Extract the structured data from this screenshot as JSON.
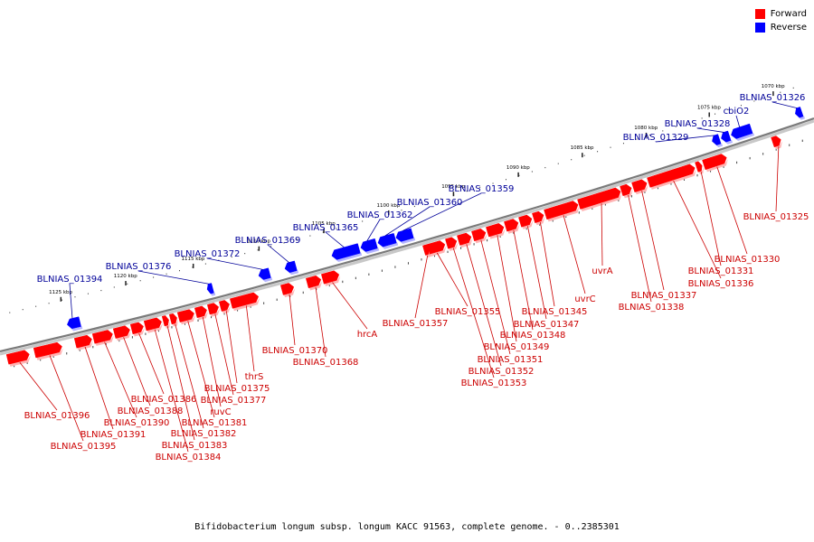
{
  "legend": {
    "forward_label": "Forward",
    "reverse_label": "Reverse",
    "forward_color": "#ff0000",
    "reverse_color": "#0000ff"
  },
  "footer": {
    "title": "Bifidobacterium longum subsp. longum KACC 91563, complete genome. - 0..2385301"
  },
  "ticks": [
    "1125 kbp",
    "1120 kbp",
    "1115 kbp",
    "1110 kbp",
    "1105 kbp",
    "1100 kbp",
    "1095 kbp",
    "1090 kbp",
    "1085 kbp",
    "1080 kbp",
    "1075 kbp",
    "1070 kbp"
  ],
  "forward_genes": [
    "BLNIAS_01325",
    "BLNIAS_01330",
    "BLNIAS_01331",
    "BLNIAS_01336",
    "BLNIAS_01337",
    "BLNIAS_01338",
    "uvrA",
    "uvrC",
    "BLNIAS_01345",
    "BLNIAS_01347",
    "BLNIAS_01348",
    "BLNIAS_01349",
    "BLNIAS_01351",
    "BLNIAS_01352",
    "BLNIAS_01353",
    "BLNIAS_01355",
    "BLNIAS_01357",
    "hrcA",
    "BLNIAS_01368",
    "BLNIAS_01370",
    "thrS",
    "BLNIAS_01375",
    "BLNIAS_01377",
    "ruvC",
    "BLNIAS_01381",
    "BLNIAS_01382",
    "BLNIAS_01383",
    "BLNIAS_01384",
    "BLNIAS_01386",
    "BLNIAS_01388",
    "BLNIAS_01390",
    "BLNIAS_01391",
    "BLNIAS_01395",
    "BLNIAS_01396"
  ],
  "reverse_genes": [
    "BLNIAS_01326",
    "cbiO2",
    "BLNIAS_01328",
    "BLNIAS_01329",
    "BLNIAS_01359",
    "BLNIAS_01360",
    "BLNIAS_01362",
    "BLNIAS_01365",
    "BLNIAS_01369",
    "BLNIAS_01372",
    "BLNIAS_01376",
    "BLNIAS_01394"
  ]
}
